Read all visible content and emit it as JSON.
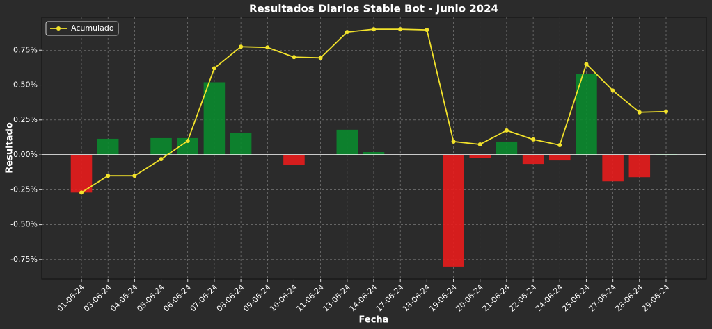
{
  "chart_data": {
    "type": "bar",
    "title": "Resultados Diarios Stable Bot - Junio 2024",
    "x_label": "Fecha",
    "y_label": "Resultado",
    "categories": [
      "01-06-24",
      "03-06-24",
      "04-06-24",
      "05-06-24",
      "06-06-24",
      "07-06-24",
      "08-06-24",
      "09-06-24",
      "10-06-24",
      "11-06-24",
      "13-06-24",
      "14-06-24",
      "17-06-24",
      "18-06-24",
      "19-06-24",
      "20-06-24",
      "21-06-24",
      "22-06-24",
      "24-06-24",
      "25-06-24",
      "27-06-24",
      "28-06-24",
      "29-06-24"
    ],
    "values": [
      -0.27,
      0.115,
      0,
      0.12,
      0.12,
      0.52,
      0.155,
      0,
      -0.07,
      0,
      0.18,
      0.02,
      0,
      0,
      -0.8,
      -0.02,
      0.095,
      -0.065,
      -0.04,
      0.58,
      -0.19,
      -0.16,
      0.005
    ],
    "positive_color": "#0a8a2e",
    "negative_color": "#e81c1c",
    "series": [
      {
        "name": "Acumulado",
        "type": "line",
        "color": "#f2e22b",
        "values": [
          -0.27,
          -0.15,
          -0.15,
          -0.03,
          0.1,
          0.62,
          0.775,
          0.77,
          0.7,
          0.695,
          0.88,
          0.9,
          0.9,
          0.895,
          0.095,
          0.075,
          0.175,
          0.11,
          0.07,
          0.65,
          0.46,
          0.305,
          0.31
        ]
      }
    ],
    "ylim": [
      -0.89,
      0.985
    ],
    "yticks": [
      {
        "value": -0.75,
        "label": "-0.75%"
      },
      {
        "value": -0.5,
        "label": "-0.50%"
      },
      {
        "value": -0.25,
        "label": "-0.25%"
      },
      {
        "value": 0,
        "label": "0.00%"
      },
      {
        "value": 0.25,
        "label": "0.25%"
      },
      {
        "value": 0.5,
        "label": "0.50%"
      },
      {
        "value": 0.75,
        "label": "0.75%"
      }
    ],
    "grid": true,
    "zero_line": true,
    "legend": "upper left"
  }
}
